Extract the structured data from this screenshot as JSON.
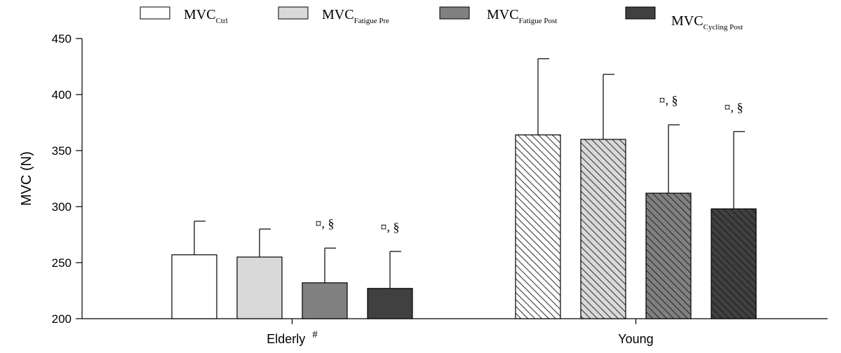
{
  "chart_data": {
    "type": "bar",
    "categories": [
      "Elderly",
      "Young"
    ],
    "category_marks": [
      "#",
      ""
    ],
    "ylabel": "MVC (N)",
    "xlabel": "",
    "ylim": [
      200,
      450
    ],
    "yticks": [
      200,
      250,
      300,
      350,
      400,
      450
    ],
    "legend_position": "top",
    "grid": false,
    "series": [
      {
        "name": "MVC",
        "name_sub": "Ctrl",
        "fill_elderly": "#ffffff",
        "fill_young": "#ffffff",
        "hatch_young": "#3a3a3a",
        "values": [
          257,
          364
        ],
        "errors": [
          30,
          68
        ],
        "annotations": [
          "",
          ""
        ]
      },
      {
        "name": "MVC",
        "name_sub": "Fatigue Pre",
        "fill_elderly": "#d9d9d9",
        "fill_young": "#d9d9d9",
        "hatch_young": "#3a3a3a",
        "values": [
          255,
          360
        ],
        "errors": [
          25,
          58
        ],
        "annotations": [
          "",
          ""
        ]
      },
      {
        "name": "MVC",
        "name_sub": "Fatigue Post",
        "fill_elderly": "#808080",
        "fill_young": "#808080",
        "hatch_young": "#2a2a2a",
        "values": [
          232,
          312
        ],
        "errors": [
          31,
          61
        ],
        "annotations": [
          "¤, §",
          "¤, §"
        ]
      },
      {
        "name": "MVC",
        "name_sub": "Cycling Post",
        "fill_elderly": "#404040",
        "fill_young": "#404040",
        "hatch_young": "#1a1a1a",
        "values": [
          227,
          298
        ],
        "errors": [
          33,
          69
        ],
        "annotations": [
          "¤, §",
          "¤, §"
        ]
      }
    ]
  }
}
